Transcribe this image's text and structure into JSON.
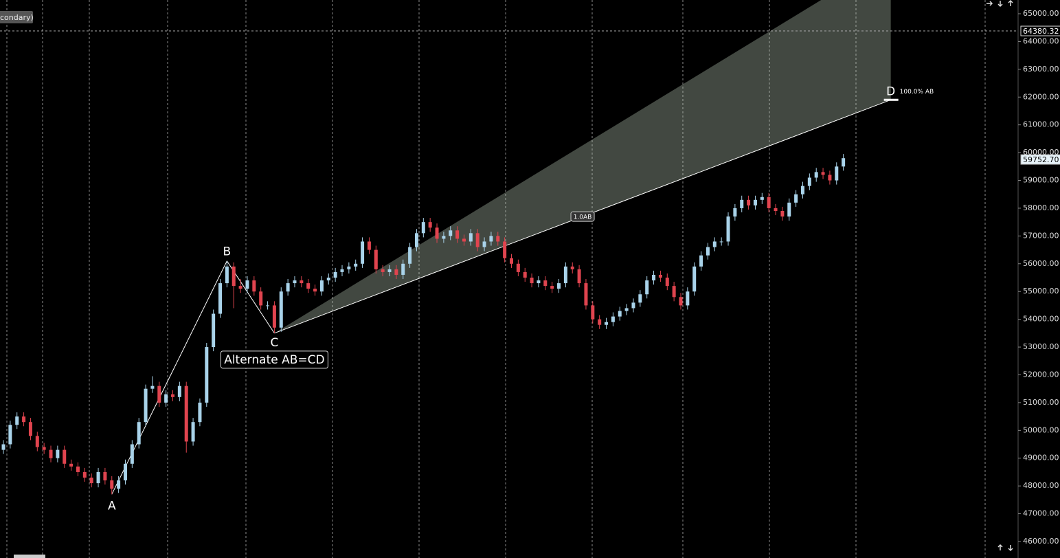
{
  "chart_data": {
    "type": "candlestick",
    "series_label": "condary)",
    "up_color": "#a9d3ea",
    "down_color": "#e0444f",
    "open": [
      49300,
      49500,
      50200,
      50500,
      50300,
      49800,
      49400,
      49300,
      49000,
      49300,
      48800,
      48700,
      48500,
      48300,
      48100,
      48500,
      48200,
      47900,
      48200,
      48800,
      49500,
      50300,
      51500,
      51600,
      51000,
      51300,
      51200,
      51600,
      49600,
      50300,
      51000,
      53000,
      54200,
      55300,
      55900,
      55200,
      55100,
      55400,
      55000,
      54500,
      54500,
      53700,
      55000,
      55300,
      55400,
      55300,
      55100,
      55000,
      55400,
      55500,
      55700,
      55800,
      55900,
      56000,
      56800,
      56500,
      55800,
      55700,
      55800,
      55600,
      56000,
      56600,
      57100,
      57500,
      57300,
      56900,
      57000,
      57200,
      56900,
      56800,
      57100,
      56600,
      56800,
      57000,
      56800,
      56200,
      56000,
      55700,
      55500,
      55300,
      55400,
      55200,
      55100,
      55300,
      55900,
      55800,
      55300,
      54500,
      54000,
      53800,
      53900,
      54100,
      54300,
      54400,
      54600,
      54900,
      55400,
      55600,
      55500,
      55200,
      54800,
      54500,
      55000,
      55900,
      56300,
      56600,
      56800,
      56800,
      57700,
      58000,
      58300,
      58100,
      58300,
      58400,
      58000,
      57900,
      57700,
      58200,
      58500,
      58800,
      59100,
      59300,
      59200,
      59000,
      59500
    ],
    "high": [
      49650,
      50350,
      50650,
      50650,
      50450,
      49950,
      49550,
      49450,
      49450,
      49450,
      48950,
      48850,
      48650,
      48450,
      48650,
      48650,
      48350,
      48350,
      48950,
      49650,
      50450,
      51650,
      51950,
      51750,
      51450,
      51450,
      51750,
      51750,
      50450,
      51150,
      53150,
      54350,
      55450,
      56100,
      56050,
      55450,
      55550,
      55550,
      55150,
      54650,
      54650,
      55150,
      55450,
      55550,
      55550,
      55450,
      55250,
      55550,
      55650,
      55850,
      55950,
      56050,
      56150,
      56950,
      56950,
      56650,
      55950,
      55950,
      55950,
      56150,
      56750,
      57250,
      57650,
      57650,
      57450,
      57150,
      57350,
      57350,
      57050,
      57250,
      57250,
      56950,
      57150,
      57150,
      56950,
      56350,
      56150,
      55850,
      55650,
      55550,
      55550,
      55350,
      55450,
      56050,
      56050,
      55950,
      55450,
      54650,
      54150,
      54050,
      54250,
      54450,
      54550,
      54750,
      55050,
      55550,
      55750,
      55750,
      55650,
      55350,
      54950,
      55150,
      56050,
      56450,
      56750,
      56950,
      56950,
      57850,
      58150,
      58450,
      58450,
      58450,
      58550,
      58550,
      58150,
      58050,
      58350,
      58650,
      58950,
      59250,
      59450,
      59450,
      59350,
      59650,
      59950
    ],
    "low": [
      49150,
      49350,
      50050,
      50150,
      49650,
      49250,
      49150,
      48850,
      48850,
      48650,
      48550,
      48350,
      48150,
      47950,
      47950,
      48050,
      47700,
      47750,
      48050,
      48650,
      49350,
      50150,
      51350,
      50850,
      50850,
      51050,
      51050,
      49200,
      49450,
      50150,
      50850,
      52850,
      54050,
      55150,
      54400,
      54950,
      54950,
      54850,
      54350,
      54350,
      53500,
      53550,
      54850,
      55150,
      55150,
      54950,
      54850,
      54850,
      55250,
      55350,
      55550,
      55650,
      55750,
      55850,
      56350,
      55650,
      55550,
      55550,
      55450,
      55450,
      55850,
      56450,
      56950,
      57150,
      56750,
      56750,
      56850,
      56750,
      56650,
      56650,
      56450,
      56450,
      56650,
      56650,
      56050,
      55850,
      55550,
      55350,
      55150,
      55150,
      55050,
      54950,
      54950,
      55150,
      55650,
      55150,
      54350,
      53850,
      53650,
      53650,
      53750,
      53950,
      54150,
      54250,
      54450,
      54750,
      55250,
      55350,
      55050,
      54650,
      54350,
      54350,
      54850,
      55750,
      56150,
      56450,
      56650,
      56650,
      57550,
      57850,
      57950,
      57950,
      58150,
      57850,
      57750,
      57550,
      57550,
      58050,
      58350,
      58650,
      58950,
      59050,
      58850,
      58850,
      59350
    ],
    "close": [
      49500,
      50200,
      50500,
      50300,
      49800,
      49400,
      49300,
      49000,
      49300,
      48800,
      48700,
      48500,
      48300,
      48100,
      48500,
      48200,
      47900,
      48200,
      48800,
      49500,
      50300,
      51500,
      51600,
      51000,
      51300,
      51200,
      51600,
      49600,
      50300,
      51000,
      53000,
      54200,
      55300,
      55900,
      55200,
      55100,
      55400,
      55000,
      54500,
      54500,
      53700,
      55000,
      55300,
      55400,
      55300,
      55100,
      55000,
      55400,
      55500,
      55700,
      55800,
      55900,
      56000,
      56800,
      56500,
      55800,
      55700,
      55800,
      55600,
      56000,
      56600,
      57100,
      57500,
      57300,
      56900,
      57000,
      57200,
      56900,
      56800,
      57100,
      56600,
      56800,
      57000,
      56800,
      56200,
      56000,
      55700,
      55500,
      55300,
      55400,
      55200,
      55100,
      55300,
      55900,
      55800,
      55300,
      54500,
      54000,
      53800,
      53900,
      54100,
      54300,
      54400,
      54600,
      54900,
      55400,
      55600,
      55500,
      55200,
      54800,
      54500,
      55000,
      55900,
      56300,
      56600,
      56800,
      56800,
      57700,
      58000,
      58300,
      58100,
      58300,
      58400,
      58000,
      57900,
      57700,
      58200,
      58500,
      58800,
      59100,
      59300,
      59200,
      59000,
      59500,
      59800
    ],
    "ylim": [
      46000,
      65000
    ],
    "yticks": [
      {
        "value": 46000,
        "label": "46000.00"
      },
      {
        "value": 47000,
        "label": "47000.00"
      },
      {
        "value": 48000,
        "label": "48000.00"
      },
      {
        "value": 49000,
        "label": "49000.00"
      },
      {
        "value": 50000,
        "label": "50000.00"
      },
      {
        "value": 51000,
        "label": "51000.00"
      },
      {
        "value": 52000,
        "label": "52000.00"
      },
      {
        "value": 53000,
        "label": "53000.00"
      },
      {
        "value": 54000,
        "label": "54000.00"
      },
      {
        "value": 55000,
        "label": "55000.00"
      },
      {
        "value": 56000,
        "label": "56000.00"
      },
      {
        "value": 57000,
        "label": "57000.00"
      },
      {
        "value": 58000,
        "label": "58000.00"
      },
      {
        "value": 59000,
        "label": "59000.00"
      },
      {
        "value": 60000,
        "label": "60000.00"
      },
      {
        "value": 61000,
        "label": "61000.00"
      },
      {
        "value": 62000,
        "label": "62000.00"
      },
      {
        "value": 63000,
        "label": "63000.00"
      },
      {
        "value": 64000,
        "label": "64000.00"
      },
      {
        "value": 65000,
        "label": "65000.00"
      }
    ],
    "price_markers": [
      {
        "value": 64380.32,
        "label": "64380.32",
        "kind": "crosshair"
      },
      {
        "value": 59752.7,
        "label": "59752.70",
        "kind": "last"
      }
    ],
    "pattern": {
      "title": "Alternate AB=CD",
      "cd_label": "1.0AB",
      "d_label": "100.0% AB",
      "points": [
        {
          "label": "A",
          "index": 16,
          "value": 47700
        },
        {
          "label": "B",
          "index": 33,
          "value": 56100
        },
        {
          "label": "C",
          "index": 40,
          "value": 53500
        },
        {
          "label": "D",
          "index": 131,
          "value": 61900
        }
      ]
    }
  }
}
